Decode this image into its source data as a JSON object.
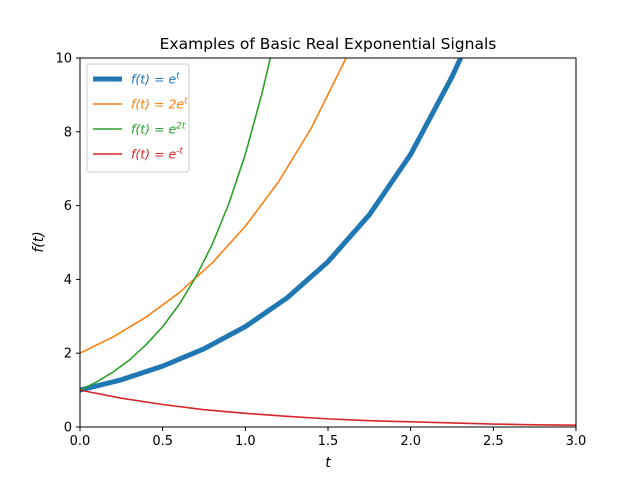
{
  "chart_data": {
    "type": "line",
    "title": "Examples of Basic Real Exponential Signals",
    "xlabel": "t",
    "ylabel": "f(t)",
    "xlim": [
      0.0,
      3.0
    ],
    "ylim": [
      0,
      10
    ],
    "x_ticks": [
      "0.0",
      "0.5",
      "1.0",
      "1.5",
      "2.0",
      "2.5",
      "3.0"
    ],
    "y_ticks": [
      "0",
      "2",
      "4",
      "6",
      "8",
      "10"
    ],
    "grid": false,
    "legend_position": "upper-left",
    "series": [
      {
        "name": "f(t) = e^t",
        "color": "#1f77b4",
        "linewidth": "thick",
        "x": [
          0.0,
          0.25,
          0.5,
          0.75,
          1.0,
          1.25,
          1.5,
          1.75,
          2.0,
          2.25,
          2.3026
        ],
        "y": [
          1.0,
          1.28,
          1.65,
          2.12,
          2.72,
          3.49,
          4.48,
          5.75,
          7.39,
          9.49,
          10.0
        ]
      },
      {
        "name": "f(t) = 2e^t",
        "color": "#ff7f0e",
        "linewidth": "normal",
        "x": [
          0.0,
          0.2,
          0.4,
          0.6,
          0.8,
          1.0,
          1.2,
          1.4,
          1.6094
        ],
        "y": [
          2.0,
          2.44,
          2.98,
          3.64,
          4.45,
          5.44,
          6.64,
          8.11,
          10.0
        ]
      },
      {
        "name": "f(t) = e^{2t}",
        "color": "#2ca02c",
        "linewidth": "normal",
        "x": [
          0.0,
          0.1,
          0.2,
          0.3,
          0.4,
          0.5,
          0.6,
          0.7,
          0.8,
          0.9,
          1.0,
          1.1,
          1.1513
        ],
        "y": [
          1.0,
          1.22,
          1.49,
          1.82,
          2.23,
          2.72,
          3.32,
          4.06,
          4.95,
          6.05,
          7.39,
          9.03,
          10.0
        ]
      },
      {
        "name": "f(t) = e^{-t}",
        "color": "#d62728",
        "linewidth": "normal",
        "x": [
          0.0,
          0.25,
          0.5,
          0.75,
          1.0,
          1.25,
          1.5,
          1.75,
          2.0,
          2.25,
          2.5,
          2.75,
          3.0
        ],
        "y": [
          1.0,
          0.78,
          0.61,
          0.47,
          0.37,
          0.29,
          0.22,
          0.17,
          0.14,
          0.11,
          0.08,
          0.06,
          0.05
        ]
      }
    ]
  }
}
